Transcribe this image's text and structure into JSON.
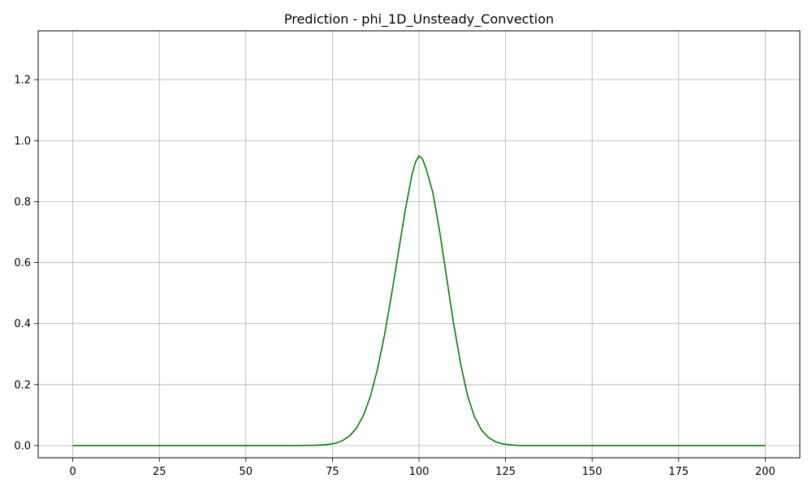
{
  "chart_data": {
    "type": "line",
    "title": "Prediction - phi_1D_Unsteady_Convection",
    "xlabel": "",
    "ylabel": "",
    "xlim": [
      -10,
      210
    ],
    "ylim": [
      -0.04,
      1.36
    ],
    "x_ticks": [
      0,
      25,
      50,
      75,
      100,
      125,
      150,
      175,
      200
    ],
    "y_ticks": [
      0.0,
      0.2,
      0.4,
      0.6,
      0.8,
      1.0,
      1.2
    ],
    "x_tick_labels": [
      "0",
      "25",
      "50",
      "75",
      "100",
      "125",
      "150",
      "175",
      "200"
    ],
    "y_tick_labels": [
      "0.0",
      "0.2",
      "0.4",
      "0.6",
      "0.8",
      "1.0",
      "1.2"
    ],
    "grid": true,
    "legend": "none",
    "series": [
      {
        "color": "#008000",
        "x": [
          0,
          10,
          20,
          30,
          40,
          50,
          60,
          65,
          70,
          72,
          74,
          76,
          78,
          80,
          82,
          84,
          86,
          88,
          90,
          92,
          94,
          96,
          98,
          99,
          100,
          101,
          102,
          104,
          106,
          108,
          110,
          112,
          114,
          116,
          118,
          120,
          122,
          124,
          126,
          128,
          130,
          135,
          140,
          150,
          160,
          170,
          180,
          190,
          200
        ],
        "y": [
          0.0,
          0.0,
          0.0,
          0.0,
          0.0,
          0.0,
          0.0,
          0.0,
          0.001,
          0.002,
          0.004,
          0.008,
          0.017,
          0.032,
          0.058,
          0.1,
          0.163,
          0.25,
          0.36,
          0.49,
          0.63,
          0.77,
          0.89,
          0.93,
          0.95,
          0.94,
          0.91,
          0.83,
          0.7,
          0.55,
          0.4,
          0.27,
          0.165,
          0.095,
          0.052,
          0.027,
          0.013,
          0.006,
          0.003,
          0.001,
          0.0,
          0.0,
          0.0,
          0.0,
          0.0,
          0.0,
          0.0,
          0.0,
          0.0
        ]
      }
    ]
  }
}
